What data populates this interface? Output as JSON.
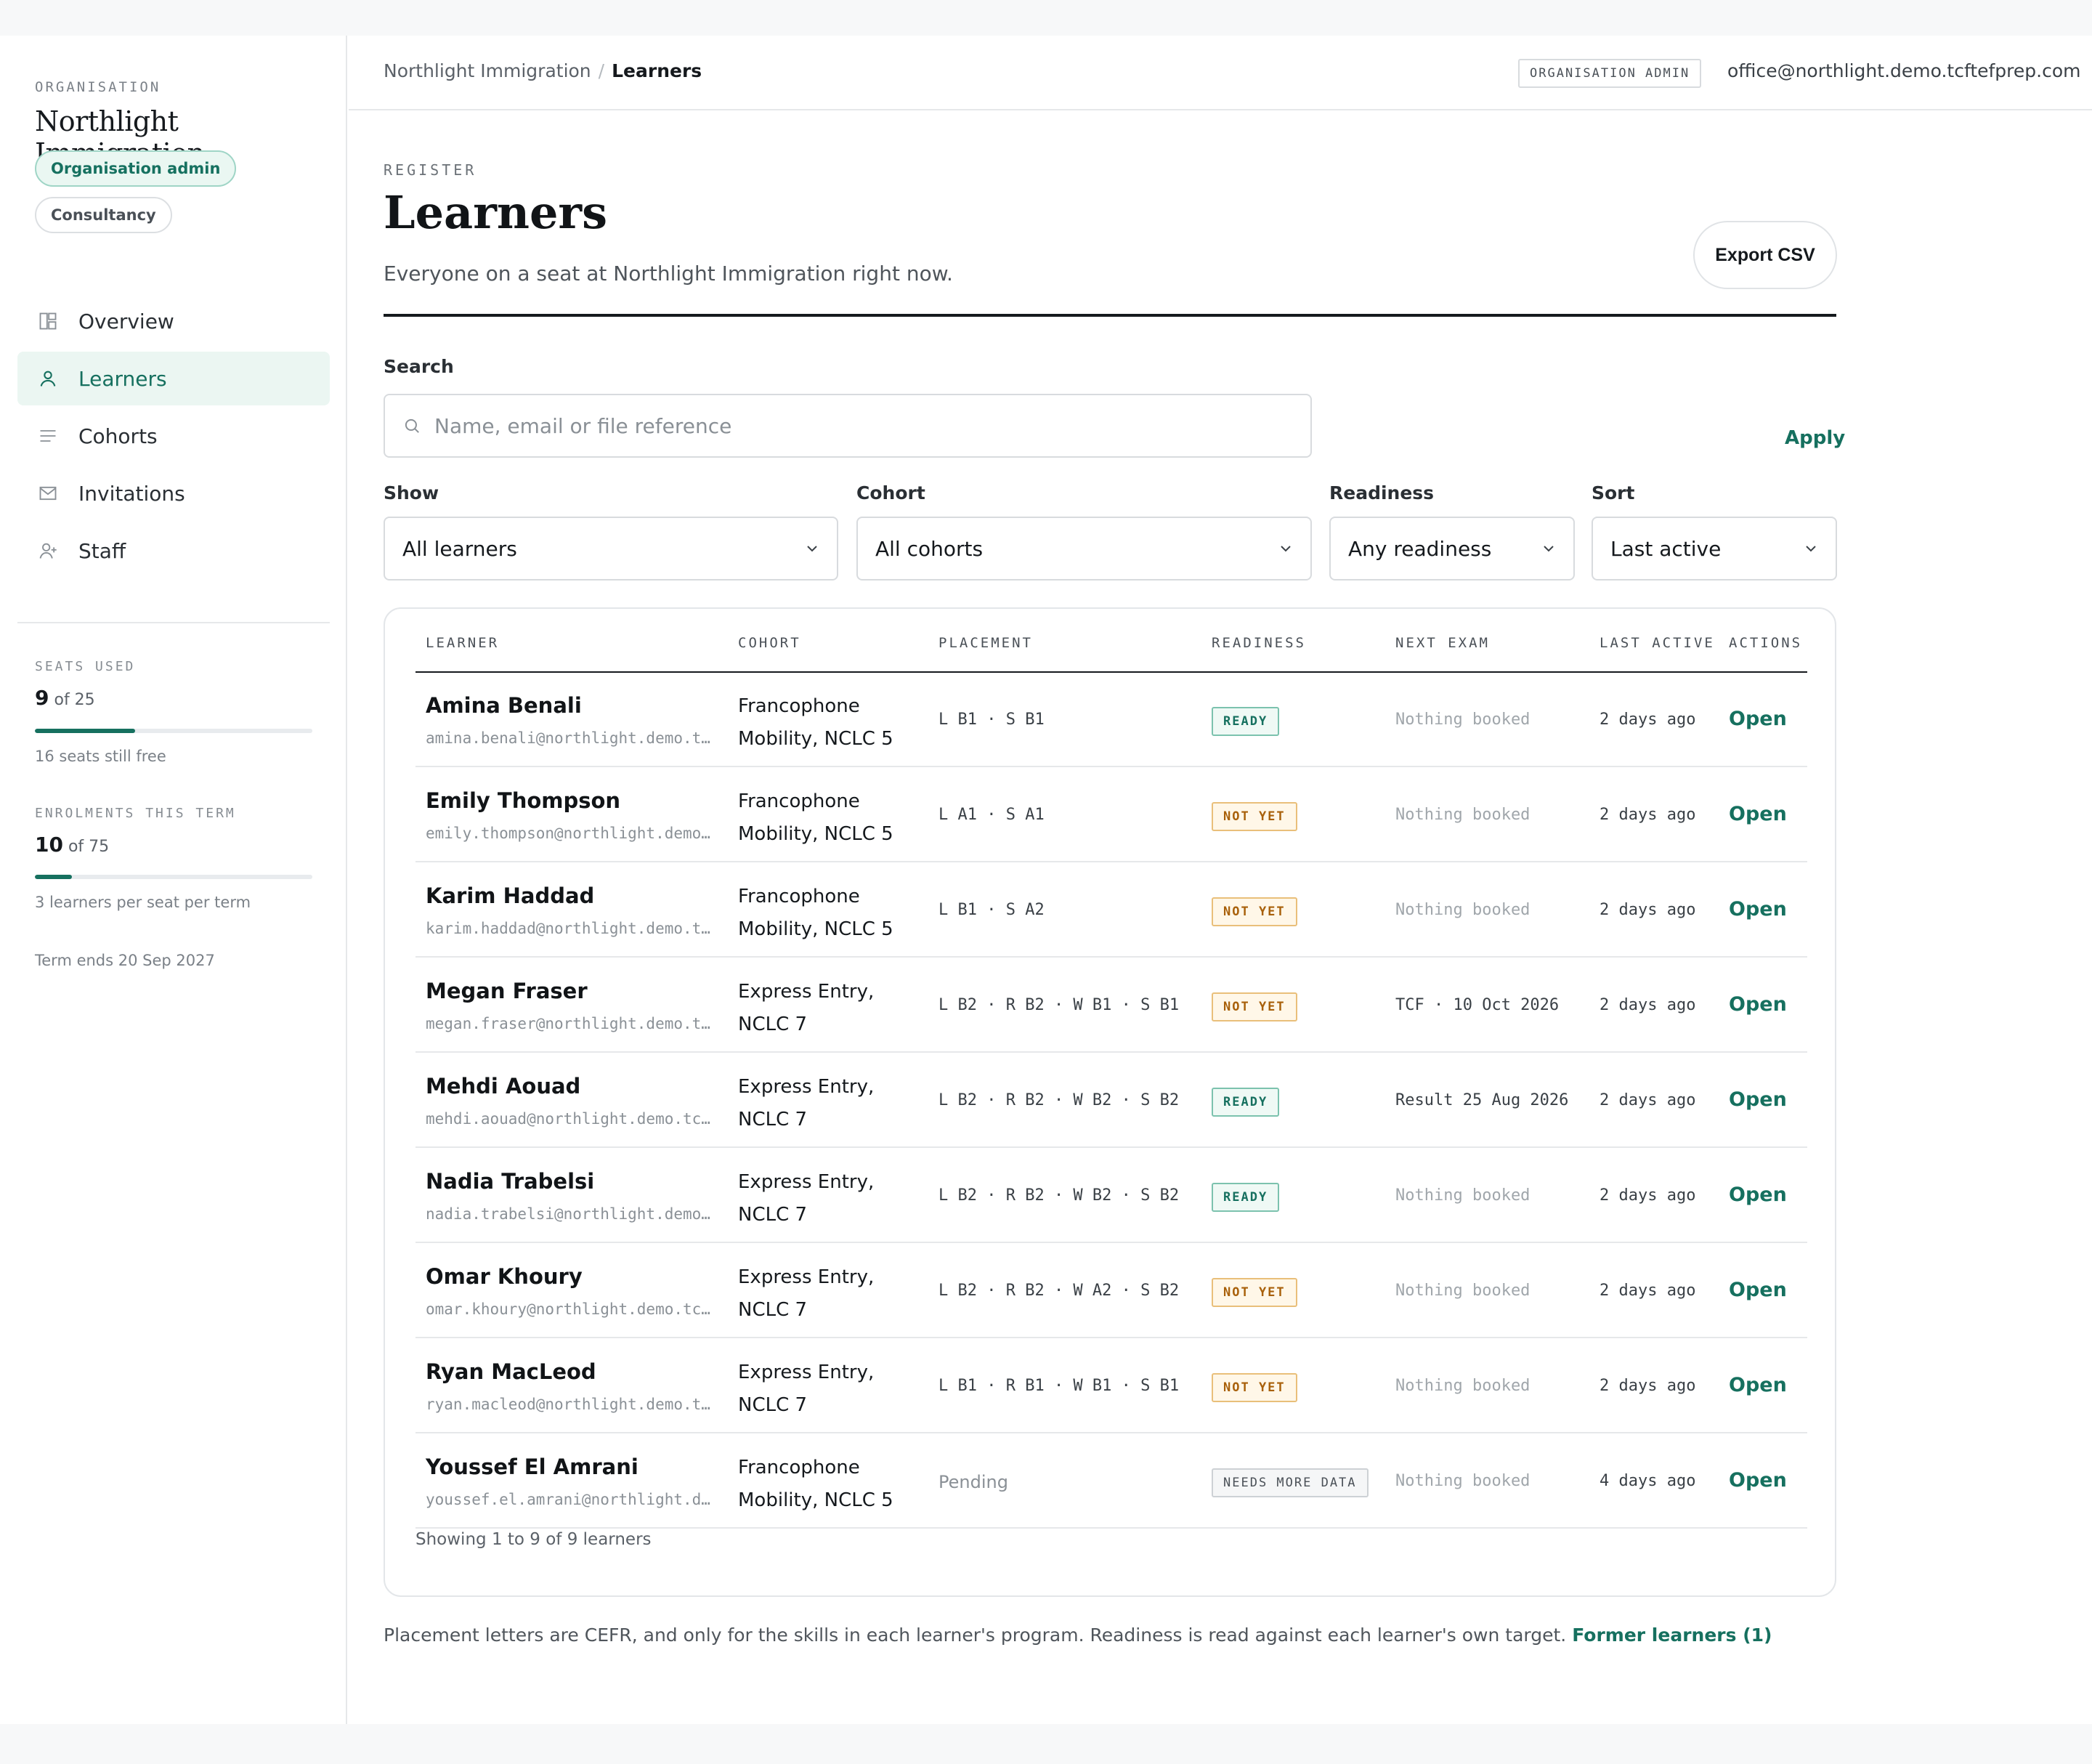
{
  "sidebar": {
    "eyebrow": "ORGANISATION",
    "org_name": "Northlight Immigration",
    "role_pill": "Organisation admin",
    "type_pill": "Consultancy",
    "nav": [
      {
        "label": "Overview",
        "icon": "overview-icon"
      },
      {
        "label": "Learners",
        "icon": "user-icon",
        "active": true
      },
      {
        "label": "Cohorts",
        "icon": "list-icon"
      },
      {
        "label": "Invitations",
        "icon": "mail-icon"
      },
      {
        "label": "Staff",
        "icon": "user-plus-icon"
      }
    ],
    "seats": {
      "eyebrow": "SEATS USED",
      "used": "9",
      "of_text": "of 25",
      "fraction": 0.36,
      "note": "16 seats still free"
    },
    "enrolments": {
      "eyebrow": "ENROLMENTS THIS TERM",
      "used": "10",
      "of_text": "of 75",
      "fraction": 0.133,
      "note": "3 learners per seat per term"
    },
    "term_note": "Term ends 20 Sep 2027"
  },
  "topbar": {
    "crumb_root": "Northlight Immigration",
    "crumb_sep": "/",
    "crumb_current": "Learners",
    "role_tag": "ORGANISATION ADMIN",
    "email": "office@northlight.demo.tcftefprep.com"
  },
  "header": {
    "eyebrow": "REGISTER",
    "title": "Learners",
    "subtitle": "Everyone on a seat at Northlight Immigration right now.",
    "export_label": "Export CSV"
  },
  "filters": {
    "search_label": "Search",
    "search_placeholder": "Name, email or file reference",
    "apply_label": "Apply",
    "show": {
      "label": "Show",
      "value": "All learners"
    },
    "cohort": {
      "label": "Cohort",
      "value": "All cohorts"
    },
    "readiness": {
      "label": "Readiness",
      "value": "Any readiness"
    },
    "sort": {
      "label": "Sort",
      "value": "Last active"
    }
  },
  "table": {
    "headers": [
      "LEARNER",
      "COHORT",
      "PLACEMENT",
      "READINESS",
      "NEXT EXAM",
      "LAST ACTIVE",
      "ACTIONS"
    ],
    "rows": [
      {
        "name": "Amina Benali",
        "email": "amina.benali@northlight.demo.tcftefprep.com",
        "cohort": "Francophone Mobility, NCLC 5",
        "placement": "L B1 · S B1",
        "readiness": "READY",
        "next_exam": "Nothing booked",
        "last_active": "2 days ago",
        "action": "Open"
      },
      {
        "name": "Emily Thompson",
        "email": "emily.thompson@northlight.demo.tcftefprep.com",
        "cohort": "Francophone Mobility, NCLC 5",
        "placement": "L A1 · S A1",
        "readiness": "NOT YET",
        "next_exam": "Nothing booked",
        "last_active": "2 days ago",
        "action": "Open"
      },
      {
        "name": "Karim Haddad",
        "email": "karim.haddad@northlight.demo.tcftefprep.com",
        "cohort": "Francophone Mobility, NCLC 5",
        "placement": "L B1 · S A2",
        "readiness": "NOT YET",
        "next_exam": "Nothing booked",
        "last_active": "2 days ago",
        "action": "Open"
      },
      {
        "name": "Megan Fraser",
        "email": "megan.fraser@northlight.demo.tcftefprep.com",
        "cohort": "Express Entry, NCLC 7",
        "placement": "L B2 · R B2 · W B1 · S B1",
        "readiness": "NOT YET",
        "next_exam": "TCF · 10 Oct 2026",
        "last_active": "2 days ago",
        "action": "Open"
      },
      {
        "name": "Mehdi Aouad",
        "email": "mehdi.aouad@northlight.demo.tcftefprep.com",
        "cohort": "Express Entry, NCLC 7",
        "placement": "L B2 · R B2 · W B2 · S B2",
        "readiness": "READY",
        "next_exam": "Result 25 Aug 2026",
        "last_active": "2 days ago",
        "action": "Open"
      },
      {
        "name": "Nadia Trabelsi",
        "email": "nadia.trabelsi@northlight.demo.tcftefprep.com",
        "cohort": "Express Entry, NCLC 7",
        "placement": "L B2 · R B2 · W B2 · S B2",
        "readiness": "READY",
        "next_exam": "Nothing booked",
        "last_active": "2 days ago",
        "action": "Open"
      },
      {
        "name": "Omar Khoury",
        "email": "omar.khoury@northlight.demo.tcftefprep.com",
        "cohort": "Express Entry, NCLC 7",
        "placement": "L B2 · R B2 · W A2 · S B2",
        "readiness": "NOT YET",
        "next_exam": "Nothing booked",
        "last_active": "2 days ago",
        "action": "Open"
      },
      {
        "name": "Ryan MacLeod",
        "email": "ryan.macleod@northlight.demo.tcftefprep.com",
        "cohort": "Express Entry, NCLC 7",
        "placement": "L B1 · R B1 · W B1 · S B1",
        "readiness": "NOT YET",
        "next_exam": "Nothing booked",
        "last_active": "2 days ago",
        "action": "Open"
      },
      {
        "name": "Youssef El Amrani",
        "email": "youssef.el.amrani@northlight.demo.tcftefprep.com",
        "cohort": "Francophone Mobility, NCLC 5",
        "placement": "Pending",
        "readiness": "NEEDS MORE DATA",
        "next_exam": "Nothing booked",
        "last_active": "4 days ago",
        "action": "Open"
      }
    ],
    "footer": "Showing 1 to 9 of 9 learners"
  },
  "footnote": {
    "text": "Placement letters are CEFR, and only for the skills in each learner's program. Readiness is read against each learner's own target.",
    "link": "Former learners (1)"
  },
  "colors": {
    "accent": "#16705f",
    "ready": "#16705f",
    "not_yet": "#a8600a"
  }
}
